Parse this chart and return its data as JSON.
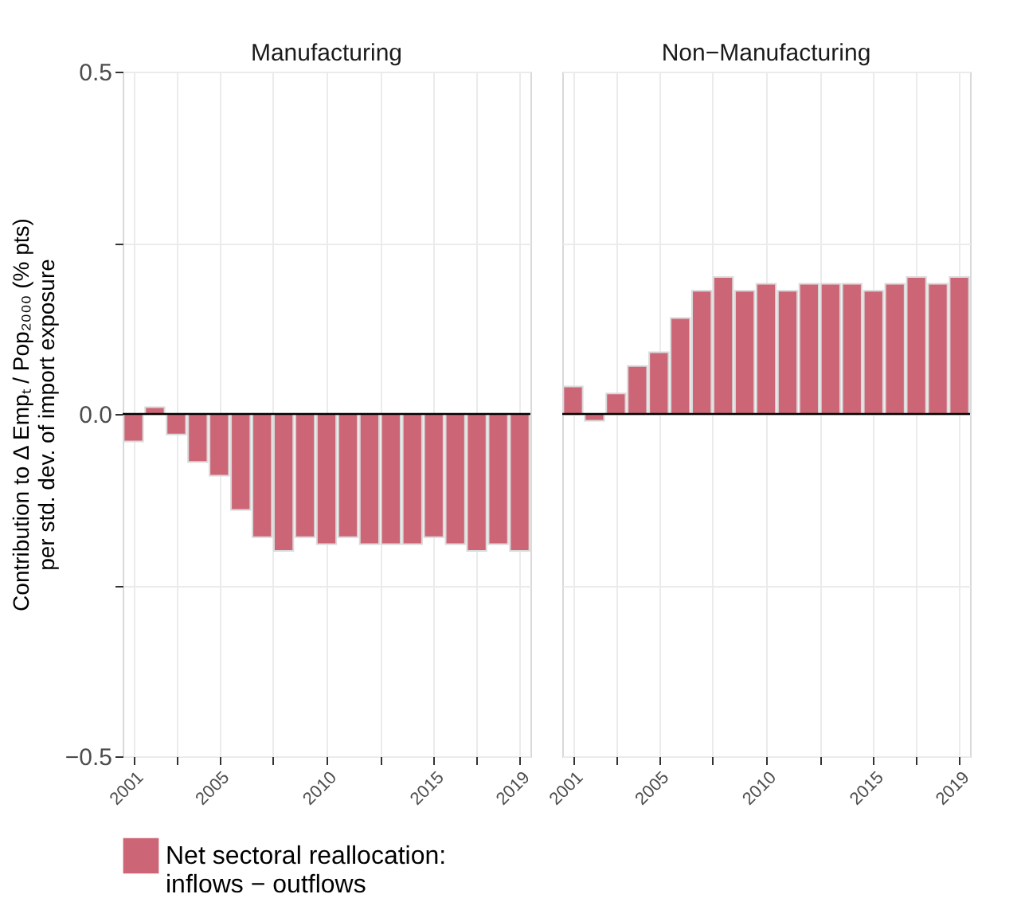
{
  "chart_data": [
    {
      "type": "bar",
      "title": "Manufacturing",
      "ylabel": "Contribution to Δ Empₜ / Pop₂₀₀₀ (% pts)\nper std. dev. of import exposure",
      "x": [
        2001,
        2002,
        2003,
        2004,
        2005,
        2006,
        2007,
        2008,
        2009,
        2010,
        2011,
        2012,
        2013,
        2014,
        2015,
        2016,
        2017,
        2018,
        2019
      ],
      "series": [
        {
          "name": "Net sectoral reallocation:\ninflows − outflows",
          "color": "#cc6677",
          "values": [
            -0.04,
            0.01,
            -0.03,
            -0.07,
            -0.09,
            -0.14,
            -0.18,
            -0.2,
            -0.18,
            -0.19,
            -0.18,
            -0.19,
            -0.19,
            -0.19,
            -0.18,
            -0.19,
            -0.2,
            -0.19,
            -0.2
          ]
        }
      ],
      "xlim": [
        2000.5,
        2019.5
      ],
      "xticks": [
        2001,
        {
          "value": 2003,
          "label": null
        },
        2005,
        {
          "value": 2007.5,
          "label": null
        },
        2010,
        {
          "value": 2012.5,
          "label": null
        },
        2015,
        {
          "value": 2017,
          "label": null
        },
        2019
      ],
      "ylim": [
        -0.5,
        0.5
      ],
      "yticks": [
        {
          "value": -0.5,
          "label": "−0.5"
        },
        {
          "value": -0.25,
          "label": null
        },
        {
          "value": 0,
          "label": "0.0"
        },
        {
          "value": 0.25,
          "label": null
        },
        0.5
      ],
      "ref_lines": [
        {
          "axis": "y",
          "value": 0,
          "color": "#000000"
        }
      ],
      "grid": true,
      "legend": "bottom"
    },
    {
      "type": "bar",
      "title": "Non−Manufacturing",
      "x": [
        2001,
        2002,
        2003,
        2004,
        2005,
        2006,
        2007,
        2008,
        2009,
        2010,
        2011,
        2012,
        2013,
        2014,
        2015,
        2016,
        2017,
        2018,
        2019
      ],
      "series": [
        {
          "name": "Net sectoral reallocation:\ninflows − outflows",
          "color": "#cc6677",
          "values": [
            0.04,
            -0.01,
            0.03,
            0.07,
            0.09,
            0.14,
            0.18,
            0.2,
            0.18,
            0.19,
            0.18,
            0.19,
            0.19,
            0.19,
            0.18,
            0.19,
            0.2,
            0.19,
            0.2
          ]
        }
      ],
      "xlim": [
        2000.5,
        2019.5
      ],
      "xticks": [
        2001,
        {
          "value": 2003,
          "label": null
        },
        2005,
        {
          "value": 2007.5,
          "label": null
        },
        2010,
        {
          "value": 2012.5,
          "label": null
        },
        2015,
        {
          "value": 2017,
          "label": null
        },
        2019
      ],
      "ylim": [
        -0.5,
        0.5
      ],
      "yticks": [
        -0.5,
        -0.25,
        0,
        0.25,
        0.5
      ],
      "ref_lines": [
        {
          "axis": "y",
          "value": 0,
          "color": "#000000"
        }
      ],
      "grid": true,
      "legend": "bottom",
      "tick_labels": "x"
    }
  ]
}
